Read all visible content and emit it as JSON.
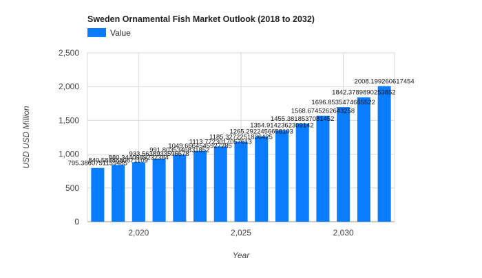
{
  "chart_data": {
    "type": "bar",
    "title": "Sweden Ornamental Fish Market Outlook (2018 to 2032)",
    "xlabel": "Year",
    "ylabel": "USD USD Million",
    "legend": {
      "position": "top-left",
      "entries": [
        "Value"
      ]
    },
    "grid": true,
    "xlim": [
      2017.5,
      2032.5
    ],
    "ylim": [
      0,
      2500
    ],
    "x_ticks": [
      2020,
      2025,
      2030
    ],
    "x_tick_labels": [
      "2,020",
      "2,025",
      "2,030"
    ],
    "y_ticks": [
      0,
      500,
      1000,
      1500,
      2000,
      2500
    ],
    "y_tick_labels": [
      "0",
      "500",
      "1,000",
      "1,500",
      "2,000",
      "2,500"
    ],
    "bar_color": "#0a7cff",
    "x": [
      2018,
      2019,
      2020,
      2021,
      2022,
      2023,
      2024,
      2025,
      2026,
      2027,
      2028,
      2029,
      2030,
      2031,
      2032
    ],
    "series": [
      {
        "name": "Value",
        "color": "#0a7cff",
        "values": [
          795.386075,
          840.5,
          880.3,
          933.56,
          991.8,
          1049.67,
          1113.77,
          1185.33,
          1265.29,
          1354.91,
          1455.38,
          1568.67,
          1696.85,
          1842.38,
          2008.199260617454
        ]
      }
    ],
    "data_labels": [
      "795.3860751159485",
      "840.5848680871109",
      "880.3440989232384",
      "933.5638933596678",
      "991.8035346831852",
      "1049.6664545927285",
      "1113.7723017057613",
      "1185.3272251836425",
      "1265.2922456658103",
      "1354.9142362309142",
      "1455.3818537081452",
      "1568.6745262643258",
      "1696.8535474665522",
      "1842.3789890253852",
      "2008.199260617454"
    ]
  }
}
